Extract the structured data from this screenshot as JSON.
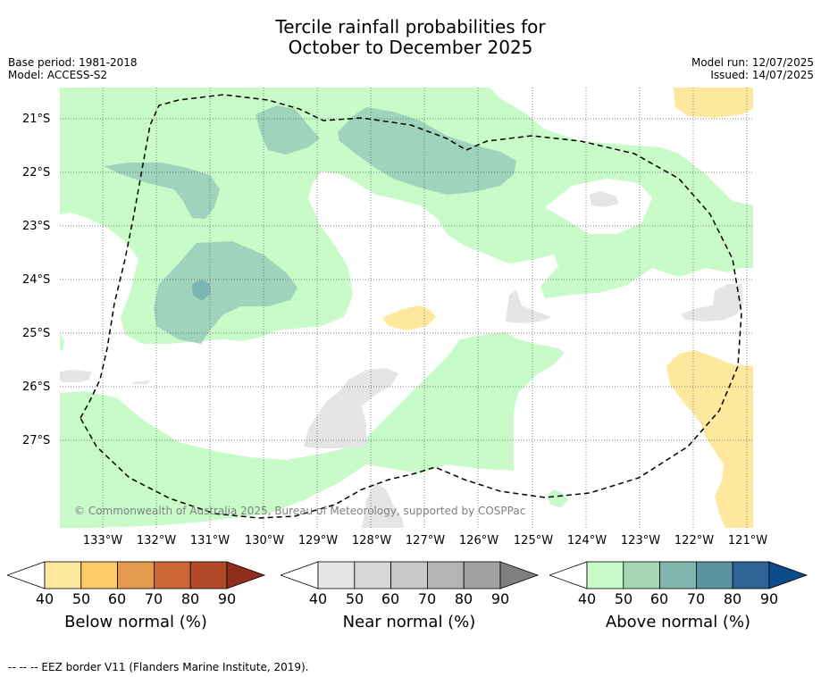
{
  "title": {
    "line1": "Tercile rainfall probabilities for",
    "line2": "October to December 2025"
  },
  "meta": {
    "base_period": "Base period: 1981-2018",
    "model": "Model: ACCESS-S2",
    "model_run": "Model run: 12/07/2025",
    "issued": "Issued: 14/07/2025"
  },
  "map": {
    "lat_labels": [
      "21°S",
      "22°S",
      "23°S",
      "24°S",
      "25°S",
      "26°S",
      "27°S"
    ],
    "lon_labels": [
      "133°W",
      "132°W",
      "131°W",
      "130°W",
      "129°W",
      "128°W",
      "127°W",
      "126°W",
      "125°W",
      "124°W",
      "123°W",
      "122°W",
      "121°W"
    ],
    "attribution": "© Commonwealth of Australia 2025, Bureau of Meteorology, supported by COSPPac",
    "colors": {
      "above_40": "#c8fbc8",
      "above_50": "#9fd3bc",
      "above_60": "#7bb4b0",
      "near_40": "#e5e5e5",
      "below_40": "#fee89d",
      "eez_border": "#000000"
    }
  },
  "colorbars": [
    {
      "title": "Below normal (%)",
      "ticks": [
        "40",
        "50",
        "60",
        "70",
        "80",
        "90"
      ],
      "colors": [
        "#ffffff",
        "#fee89d",
        "#fecb67",
        "#e29a4c",
        "#cd6634",
        "#b04a27",
        "#8e2e1b"
      ]
    },
    {
      "title": "Near normal (%)",
      "ticks": [
        "40",
        "50",
        "60",
        "70",
        "80",
        "90"
      ],
      "colors": [
        "#ffffff",
        "#e5e5e5",
        "#d7d7d7",
        "#c8c8c8",
        "#b4b4b4",
        "#a0a0a0",
        "#808080"
      ]
    },
    {
      "title": "Above normal (%)",
      "ticks": [
        "40",
        "50",
        "60",
        "70",
        "80",
        "90"
      ],
      "colors": [
        "#ffffff",
        "#c8fbc8",
        "#a6d7b5",
        "#82b7ae",
        "#5a93a0",
        "#2e6496",
        "#0d4c88"
      ]
    }
  ],
  "footnote": "--  --  -- EEZ border V11 (Flanders Marine Institute, 2019)."
}
